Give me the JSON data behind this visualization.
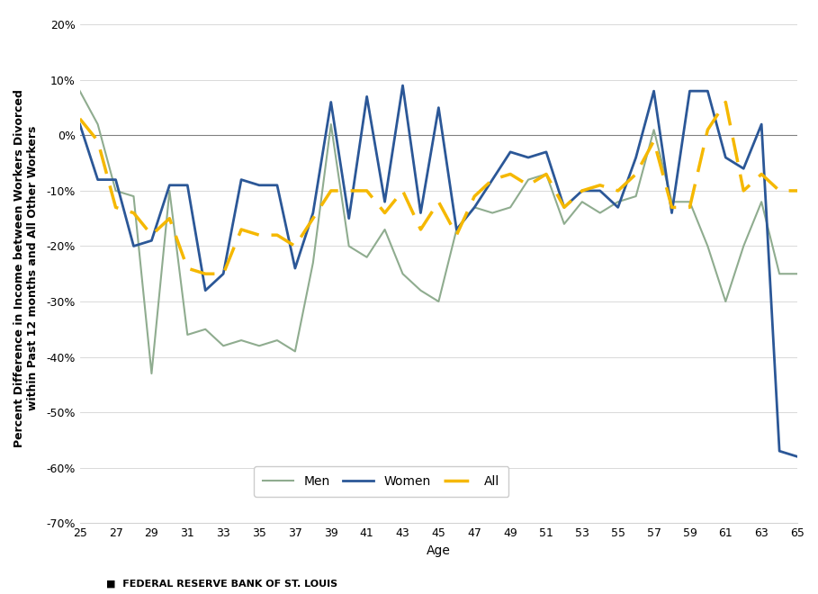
{
  "ages": [
    25,
    26,
    27,
    28,
    29,
    30,
    31,
    32,
    33,
    34,
    35,
    36,
    37,
    38,
    39,
    40,
    41,
    42,
    43,
    44,
    45,
    46,
    47,
    48,
    49,
    50,
    51,
    52,
    53,
    54,
    55,
    56,
    57,
    58,
    59,
    60,
    61,
    62,
    63,
    64,
    65
  ],
  "men": [
    8,
    2,
    -10,
    -11,
    -43,
    -10,
    -36,
    -35,
    -38,
    -37,
    -38,
    -37,
    -39,
    -23,
    2,
    -20,
    -22,
    -17,
    -25,
    -28,
    -30,
    -17,
    -13,
    -14,
    -13,
    -8,
    -7,
    -16,
    -12,
    -14,
    -12,
    -11,
    1,
    -12,
    -12,
    -20,
    -30,
    -20,
    -12,
    -25,
    -25
  ],
  "women": [
    2,
    -8,
    -8,
    -20,
    -19,
    -9,
    -9,
    -28,
    -25,
    -8,
    -9,
    -9,
    -24,
    -14,
    6,
    -15,
    7,
    -12,
    9,
    -14,
    5,
    -17,
    -13,
    -8,
    -3,
    -4,
    -3,
    -13,
    -10,
    -10,
    -13,
    -4,
    8,
    -14,
    8,
    8,
    -4,
    -6,
    2,
    -57,
    -58
  ],
  "all": [
    3,
    -1,
    -13,
    -14,
    -18,
    -15,
    -24,
    -25,
    -25,
    -17,
    -18,
    -18,
    -20,
    -15,
    -10,
    -10,
    -10,
    -14,
    -10,
    -17,
    -12,
    -18,
    -11,
    -8,
    -7,
    -9,
    -7,
    -13,
    -10,
    -9,
    -10,
    -7,
    -1,
    -13,
    -13,
    1,
    6,
    -10,
    -7,
    -10,
    -10
  ],
  "ylabel": "Percent Difference in Income between Workers Divorced\nwithin Past 12 months and All Other Workers",
  "xlabel": "Age",
  "ylim": [
    -70,
    22
  ],
  "yticks": [
    -70,
    -60,
    -50,
    -40,
    -30,
    -20,
    -10,
    0,
    10,
    20
  ],
  "men_color": "#8fac8f",
  "women_color": "#2b5797",
  "all_color": "#f5b800",
  "men_label": "Men",
  "women_label": "Women",
  "all_label": "All",
  "footer": "■  FEDERAL RESERVE BANK OF ST. LOUIS",
  "background_color": "#ffffff",
  "grid_color": "#d3d3d3",
  "zero_line_color": "#808080"
}
